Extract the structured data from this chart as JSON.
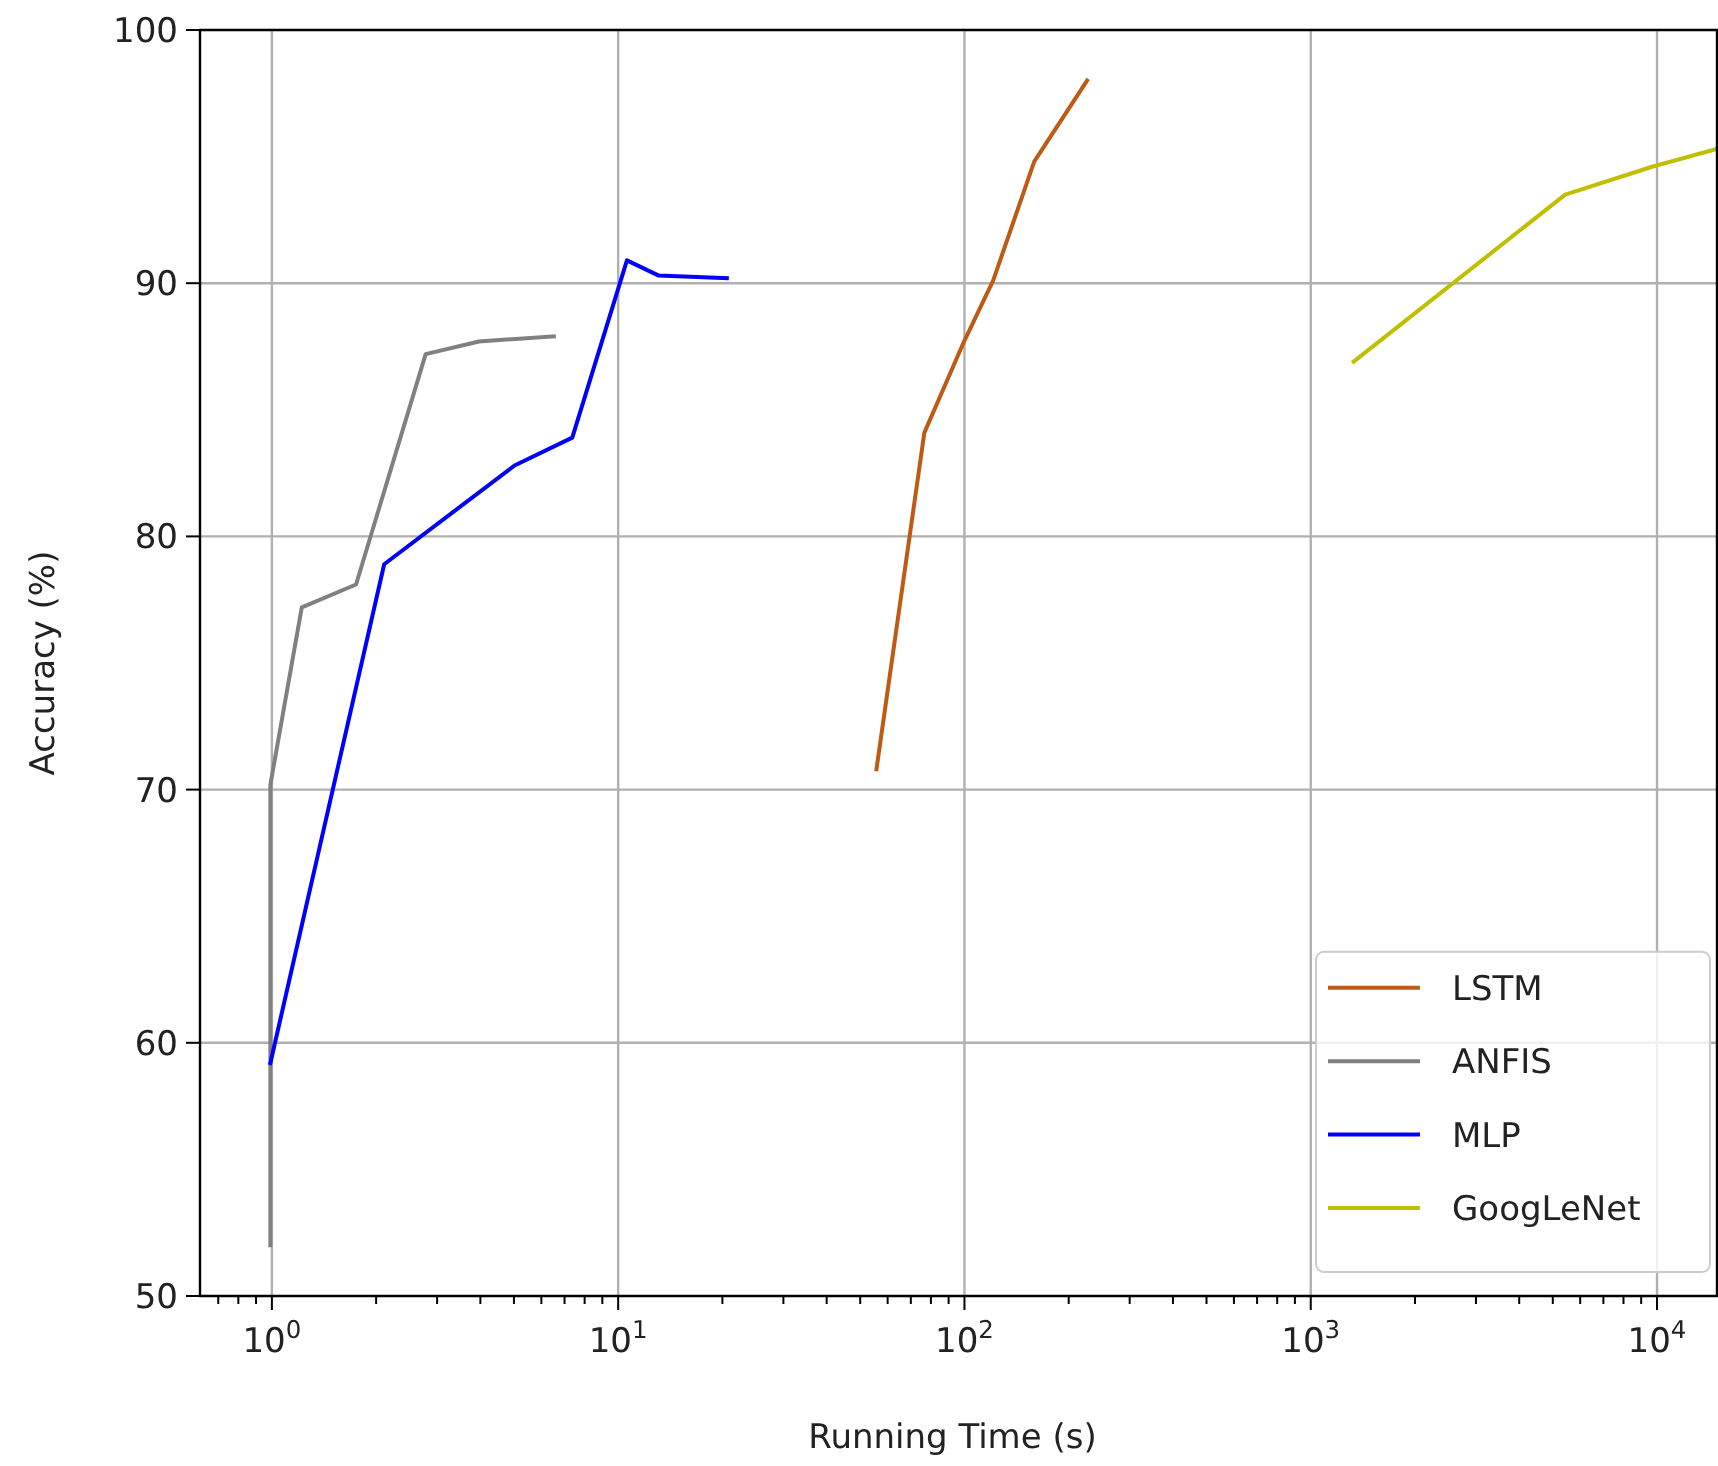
{
  "chart_data": {
    "type": "line",
    "xlabel": "Running Time (s)",
    "ylabel": "Accuracy (%)",
    "log": "x",
    "grid": true,
    "legend": "bottom right",
    "line_style": "solid",
    "marker": "none",
    "xlim": [
      0.62,
      14900
    ],
    "ylim": [
      50,
      100
    ],
    "xticks": [
      {
        "value": 0.7,
        "label": null
      },
      {
        "value": 0.8,
        "label": null
      },
      {
        "value": 0.9,
        "label": null
      },
      {
        "value": 1,
        "label": "10$^{0}$"
      },
      {
        "value": 2,
        "label": null
      },
      {
        "value": 3,
        "label": null
      },
      {
        "value": 4,
        "label": null
      },
      {
        "value": 5,
        "label": null
      },
      {
        "value": 6,
        "label": null
      },
      {
        "value": 7,
        "label": null
      },
      {
        "value": 8,
        "label": null
      },
      {
        "value": 9,
        "label": null
      },
      {
        "value": 10,
        "label": "10$^{1}$"
      },
      {
        "value": 20,
        "label": null
      },
      {
        "value": 30,
        "label": null
      },
      {
        "value": 40,
        "label": null
      },
      {
        "value": 50,
        "label": null
      },
      {
        "value": 60,
        "label": null
      },
      {
        "value": 70,
        "label": null
      },
      {
        "value": 80,
        "label": null
      },
      {
        "value": 90,
        "label": null
      },
      {
        "value": 100,
        "label": "10$^{2}$"
      },
      {
        "value": 200,
        "label": null
      },
      {
        "value": 300,
        "label": null
      },
      {
        "value": 400,
        "label": null
      },
      {
        "value": 500,
        "label": null
      },
      {
        "value": 600,
        "label": null
      },
      {
        "value": 700,
        "label": null
      },
      {
        "value": 800,
        "label": null
      },
      {
        "value": 900,
        "label": null
      },
      {
        "value": 1000,
        "label": "10$^{3}$"
      },
      {
        "value": 2000,
        "label": null
      },
      {
        "value": 3000,
        "label": null
      },
      {
        "value": 4000,
        "label": null
      },
      {
        "value": 5000,
        "label": null
      },
      {
        "value": 6000,
        "label": null
      },
      {
        "value": 7000,
        "label": null
      },
      {
        "value": 8000,
        "label": null
      },
      {
        "value": 9000,
        "label": null
      },
      {
        "value": 10000,
        "label": "10$^{4}$"
      }
    ],
    "yticks": [
      50,
      60,
      70,
      80,
      90,
      100
    ],
    "series": [
      {
        "name": "LSTM",
        "color": "#bf5a15",
        "x": [
          55.7,
          76.6,
          99,
          121,
          159,
          226
        ],
        "values": [
          70.8,
          84.1,
          87.6,
          90.1,
          94.8,
          98.0
        ]
      },
      {
        "name": "ANFIS",
        "color": "#808080",
        "x": [
          0.99,
          0.99,
          1.22,
          1.75,
          2.78,
          3.96,
          6.52
        ],
        "values": [
          52,
          70.2,
          77.2,
          78.1,
          87.2,
          87.7,
          87.9
        ]
      },
      {
        "name": "MLP",
        "color": "#0000ff",
        "x": [
          0.99,
          2.11,
          5.02,
          7.37,
          10.6,
          13.1,
          20.6
        ],
        "values": [
          59.2,
          78.9,
          82.8,
          83.9,
          90.9,
          90.3,
          90.2
        ]
      },
      {
        "name": "GoogLeNet",
        "color": "#bfbf00",
        "x": [
          1330,
          5430,
          9680,
          14860
        ],
        "values": [
          86.9,
          93.5,
          94.6,
          95.3
        ]
      }
    ]
  }
}
